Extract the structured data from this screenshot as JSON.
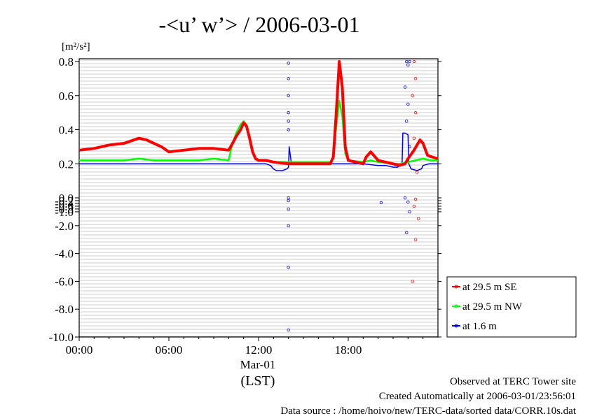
{
  "chart_data": {
    "type": "line",
    "title": "-<u’ w’> / 2006-03-01",
    "ylabel_unit": "[m²/s²]",
    "xlabel": "(LST)",
    "date_label": "Mar-01",
    "xlim": [
      0,
      24
    ],
    "ylim": [
      -10.0,
      0.8
    ],
    "x_ticks": [
      {
        "value": 0,
        "label": "00:00"
      },
      {
        "value": 6,
        "label": "06:00"
      },
      {
        "value": 12,
        "label": "12:00"
      },
      {
        "value": 18,
        "label": "18:00"
      }
    ],
    "y_ticks": [
      0.8,
      0.6,
      0.4,
      0.2,
      0.0,
      -0.2,
      -0.4,
      -0.6,
      -0.8,
      -1.0,
      -2.0,
      -4.0,
      -6.0,
      -8.0,
      -10.0
    ],
    "y_bottom_label": "-10.0",
    "grid": true,
    "legend_position": "right",
    "series": [
      {
        "name": "at 29.5 m SE",
        "color": "#ff0000",
        "x": [
          0,
          1,
          2,
          3,
          4,
          4.5,
          5,
          5.5,
          6,
          7,
          8,
          9,
          10,
          10.2,
          10.5,
          10.8,
          11,
          11.2,
          11.4,
          11.6,
          11.8,
          12,
          12.5,
          13,
          14,
          15,
          16,
          16.8,
          17,
          17.2,
          17.4,
          17.6,
          17.8,
          18,
          18.5,
          19,
          19.2,
          19.5,
          19.8,
          20,
          21,
          21.4,
          21.8,
          22,
          22.4,
          22.8,
          23,
          23.3,
          23.6,
          24
        ],
        "y": [
          0.28,
          0.29,
          0.31,
          0.32,
          0.35,
          0.34,
          0.32,
          0.3,
          0.27,
          0.28,
          0.29,
          0.29,
          0.28,
          0.31,
          0.36,
          0.4,
          0.44,
          0.42,
          0.35,
          0.27,
          0.23,
          0.22,
          0.22,
          0.21,
          0.2,
          0.2,
          0.2,
          0.2,
          0.24,
          0.5,
          0.8,
          0.65,
          0.3,
          0.22,
          0.21,
          0.2,
          0.24,
          0.27,
          0.24,
          0.22,
          0.2,
          0.19,
          0.2,
          0.23,
          0.28,
          0.34,
          0.32,
          0.25,
          0.24,
          0.23
        ]
      },
      {
        "name": "at 29.5 m NW",
        "color": "#00ff00",
        "x": [
          0,
          1,
          2,
          3,
          4,
          5,
          6,
          7,
          8,
          9,
          10,
          10.2,
          10.5,
          10.8,
          11,
          11.2,
          11.4,
          11.6,
          11.8,
          12,
          13,
          14,
          15,
          16,
          16.8,
          17,
          17.2,
          17.4,
          17.6,
          17.8,
          18,
          19,
          19.5,
          20,
          21,
          21.5,
          22,
          22.5,
          23,
          23.5,
          24
        ],
        "y": [
          0.22,
          0.22,
          0.22,
          0.22,
          0.23,
          0.22,
          0.22,
          0.22,
          0.22,
          0.23,
          0.22,
          0.3,
          0.38,
          0.43,
          0.45,
          0.43,
          0.36,
          0.27,
          0.23,
          0.22,
          0.21,
          0.21,
          0.21,
          0.21,
          0.21,
          0.24,
          0.42,
          0.57,
          0.48,
          0.26,
          0.22,
          0.21,
          0.22,
          0.21,
          0.2,
          0.2,
          0.21,
          0.22,
          0.23,
          0.22,
          0.22
        ]
      },
      {
        "name": "at 1.6 m",
        "color": "#0000ff",
        "x": [
          0,
          2,
          4,
          6,
          8,
          10,
          11,
          12,
          12.5,
          12.8,
          13,
          13.2,
          13.6,
          13.9,
          14,
          14.05,
          14.2,
          14.5,
          15,
          16,
          17,
          18,
          19,
          20,
          20.5,
          21,
          21.3,
          21.5,
          21.6,
          21.65,
          21.8,
          22,
          22.05,
          22.2,
          22.6,
          22.9,
          23,
          23.4,
          24
        ],
        "y": [
          0.2,
          0.2,
          0.2,
          0.2,
          0.2,
          0.2,
          0.2,
          0.2,
          0.2,
          0.19,
          0.17,
          0.16,
          0.16,
          0.17,
          0.18,
          0.3,
          0.2,
          0.21,
          0.2,
          0.2,
          0.2,
          0.2,
          0.2,
          0.19,
          0.19,
          0.18,
          0.18,
          0.19,
          0.2,
          0.38,
          0.38,
          0.37,
          0.2,
          0.17,
          0.16,
          0.17,
          0.19,
          0.2,
          0.2
        ]
      }
    ],
    "scatter_points": [
      {
        "series": "at 1.6 m",
        "color": "#0000ff",
        "x": [
          14.0,
          14.0,
          14.0,
          14.0,
          14.0,
          14.0,
          14.0,
          14.0,
          14.0,
          14.0,
          14.0,
          14.0,
          21.9,
          22.0,
          22.1,
          21.8,
          22.0,
          21.9,
          22.1,
          21.8,
          22.0,
          22.1,
          21.9,
          20.2
        ],
        "y": [
          0.79,
          0.7,
          0.6,
          0.5,
          0.45,
          0.4,
          0.0,
          -0.2,
          -0.8,
          -2.0,
          -5.0,
          -9.5,
          0.8,
          0.78,
          0.8,
          0.65,
          0.55,
          0.45,
          0.3,
          0.0,
          -0.3,
          -1.0,
          -2.5,
          -0.35
        ]
      },
      {
        "series": "at 29.5 m SE",
        "color": "#ff0000",
        "x": [
          22.4,
          22.5,
          22.3,
          22.5,
          22.4,
          22.6,
          22.5,
          22.4,
          22.7,
          22.5,
          22.3
        ],
        "y": [
          0.8,
          0.7,
          0.6,
          0.5,
          0.35,
          0.15,
          -0.1,
          -0.6,
          -1.5,
          -3.0,
          -6.0
        ]
      }
    ]
  },
  "footer": {
    "line1": "Observed at TERC Tower site",
    "line2": "Created Automatically at 2006-03-01/23:56:01",
    "line3": "Data source : /home/hoivo/new/TERC-data/sorted  data/CORR.10s.dat"
  }
}
